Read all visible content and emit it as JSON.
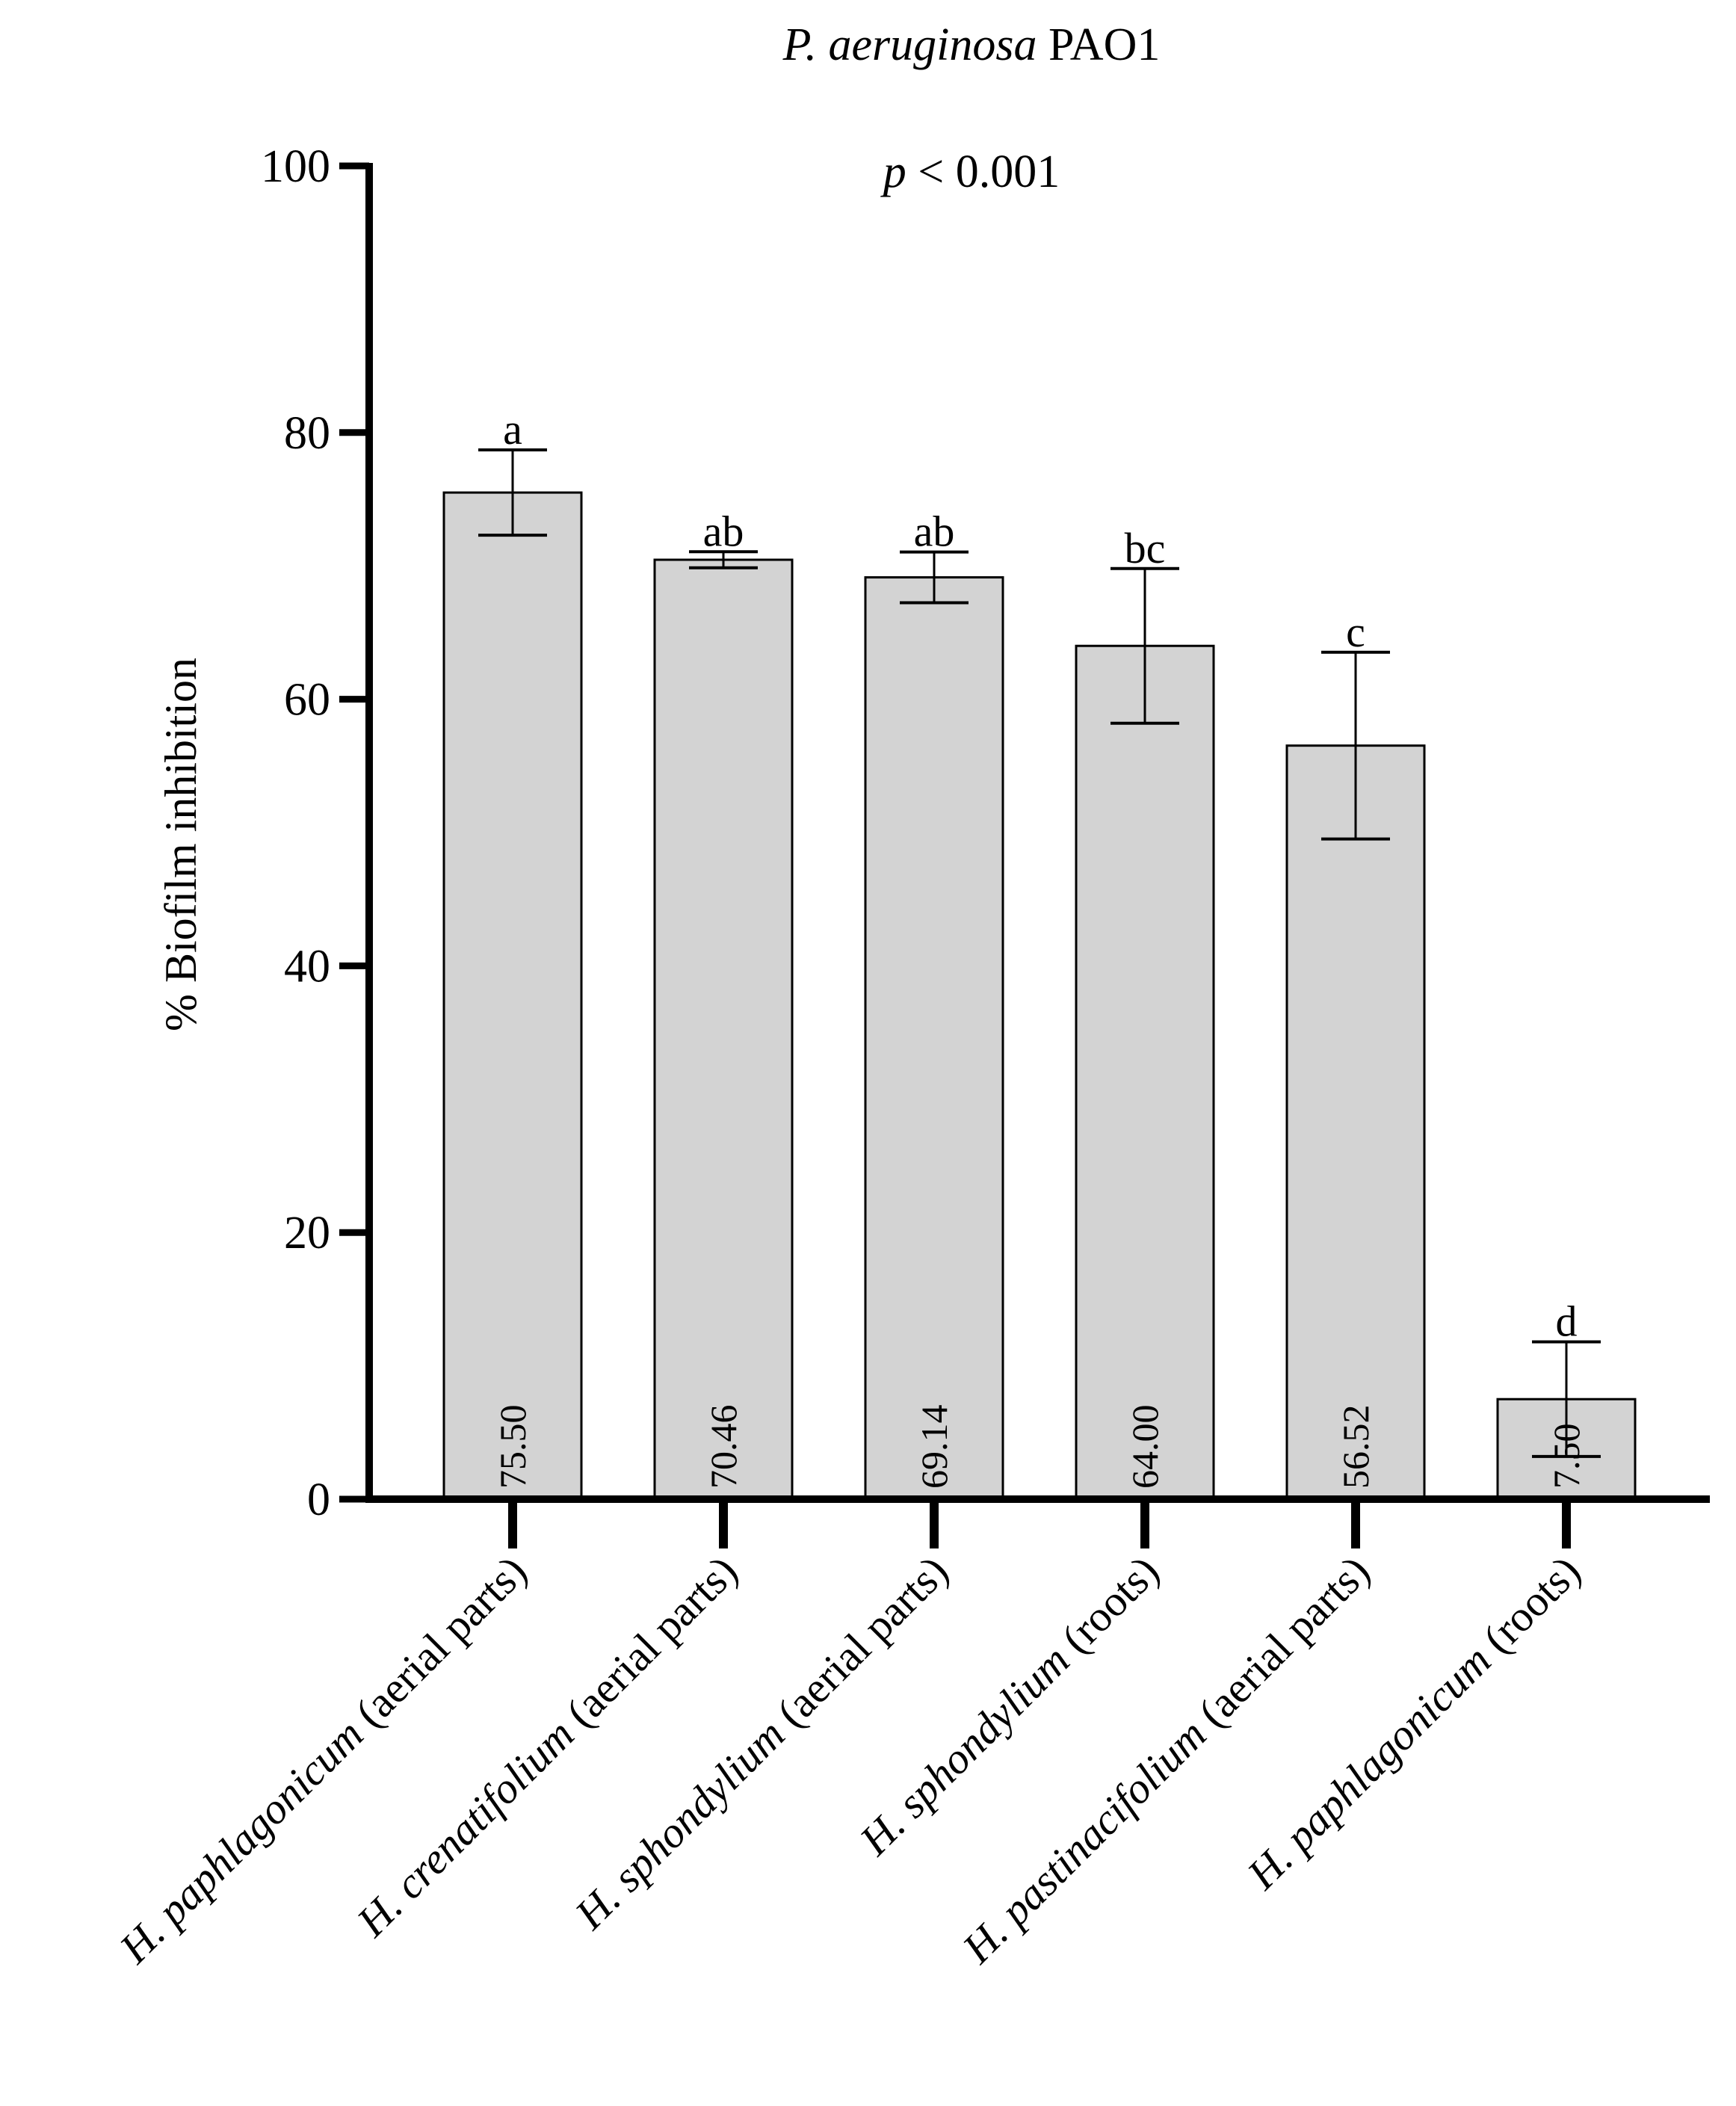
{
  "chart_data": {
    "type": "bar",
    "title_italic": "P. aeruginosa",
    "title_rest": " PAO1",
    "annotation_italic": "p",
    "annotation_rest": " < 0.001",
    "xlabel": "",
    "ylabel": "% Biofilm inhibition",
    "ylim": [
      0,
      100
    ],
    "yticks": [
      "0",
      "20",
      "40",
      "60",
      "80",
      "100"
    ],
    "bar_color": "#d3d3d3",
    "categories": [
      {
        "italic": "H. paphlagonicum",
        "rest": " (aerial parts)"
      },
      {
        "italic": "H. crenatifolium",
        "rest": " (aerial parts)"
      },
      {
        "italic": "H. sphondylium",
        "rest": " (aerial parts)"
      },
      {
        "italic": "H. sphondylium",
        "rest": " (roots)"
      },
      {
        "italic": "H. pastinacifolium",
        "rest": " (aerial parts)"
      },
      {
        "italic": "H. paphlagonicum",
        "rest": " (roots)"
      }
    ],
    "values": [
      75.5,
      70.46,
      69.14,
      64.0,
      56.52,
      7.5
    ],
    "value_labels": [
      "75.50",
      "70.46",
      "69.14",
      "64.00",
      "56.52",
      "7.50"
    ],
    "errors": [
      3.2,
      0.6,
      1.9,
      5.8,
      7.0,
      4.3
    ],
    "significance": [
      "a",
      "ab",
      "ab",
      "bc",
      "c",
      "d"
    ]
  }
}
